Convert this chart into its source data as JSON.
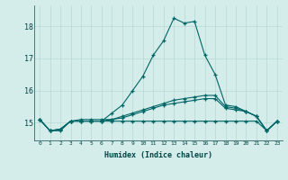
{
  "xlabel": "Humidex (Indice chaleur)",
  "background_color": "#d4ecea",
  "grid_color": "#b8d8d4",
  "line_color": "#006666",
  "xlim": [
    -0.5,
    23.5
  ],
  "ylim": [
    14.45,
    18.65
  ],
  "yticks": [
    15,
    16,
    17,
    18
  ],
  "xtick_labels": [
    "0",
    "1",
    "2",
    "3",
    "4",
    "5",
    "6",
    "7",
    "8",
    "9",
    "10",
    "11",
    "12",
    "13",
    "14",
    "15",
    "16",
    "17",
    "18",
    "19",
    "20",
    "21",
    "22",
    "23"
  ],
  "series": [
    [
      15.1,
      14.75,
      14.75,
      15.05,
      15.05,
      15.05,
      15.05,
      15.05,
      15.05,
      15.05,
      15.05,
      15.05,
      15.05,
      15.05,
      15.05,
      15.05,
      15.05,
      15.05,
      15.05,
      15.05,
      15.05,
      15.05,
      14.75,
      15.05
    ],
    [
      15.1,
      14.75,
      14.8,
      15.05,
      15.05,
      15.05,
      15.05,
      15.1,
      15.15,
      15.25,
      15.35,
      15.45,
      15.55,
      15.6,
      15.65,
      15.7,
      15.75,
      15.75,
      15.45,
      15.4,
      15.35,
      15.2,
      14.75,
      15.05
    ],
    [
      15.1,
      14.75,
      14.8,
      15.05,
      15.05,
      15.05,
      15.05,
      15.3,
      15.55,
      16.0,
      16.45,
      17.1,
      17.55,
      18.25,
      18.1,
      18.15,
      17.1,
      16.5,
      15.55,
      15.5,
      15.35,
      15.2,
      14.75,
      15.05
    ],
    [
      15.1,
      14.75,
      14.8,
      15.05,
      15.1,
      15.1,
      15.1,
      15.1,
      15.2,
      15.3,
      15.4,
      15.5,
      15.6,
      15.7,
      15.75,
      15.8,
      15.85,
      15.85,
      15.5,
      15.45,
      15.35,
      15.2,
      14.75,
      15.05
    ]
  ]
}
